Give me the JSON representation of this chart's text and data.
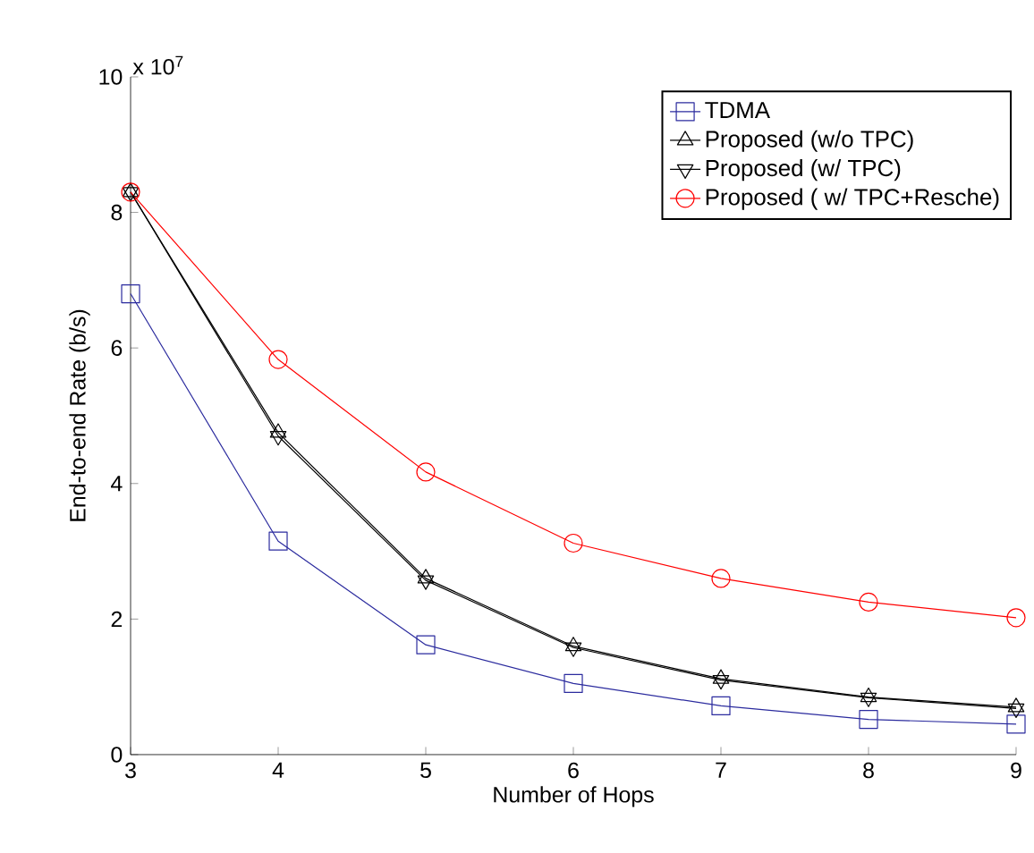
{
  "chart_data": {
    "type": "line",
    "xlabel": "Number of Hops",
    "ylabel": "End-to-end Rate  (b/s)",
    "annotations": [
      "x 10$^{7}$"
    ],
    "x": [
      3,
      4,
      5,
      6,
      7,
      8,
      9
    ],
    "xlim": [
      3,
      9
    ],
    "xticks": [
      3,
      4,
      5,
      6,
      7,
      8,
      9
    ],
    "ylim": [
      0,
      10
    ],
    "yticks": [
      0,
      2,
      4,
      6,
      8,
      10
    ],
    "grid": false,
    "legend": "top right",
    "series": [
      {
        "name": "TDMA",
        "color": "#2b2b9e",
        "marker": "square",
        "values": [
          6.8,
          3.15,
          1.62,
          1.05,
          0.72,
          0.52,
          0.45
        ]
      },
      {
        "name": "Proposed (w/o TPC)",
        "color": "#000000",
        "marker": "triangle",
        "values": [
          8.3,
          4.75,
          2.6,
          1.6,
          1.12,
          0.85,
          0.7
        ]
      },
      {
        "name": "Proposed (w/ TPC)",
        "color": "#000000",
        "marker": "triangle_down",
        "values": [
          8.3,
          4.7,
          2.57,
          1.58,
          1.1,
          0.84,
          0.68
        ]
      },
      {
        "name": "Proposed ( w/ TPC+Resche)",
        "color": "#ff0000",
        "marker": "circle",
        "values": [
          8.3,
          5.83,
          4.17,
          3.12,
          2.6,
          2.25,
          2.02
        ]
      }
    ]
  }
}
